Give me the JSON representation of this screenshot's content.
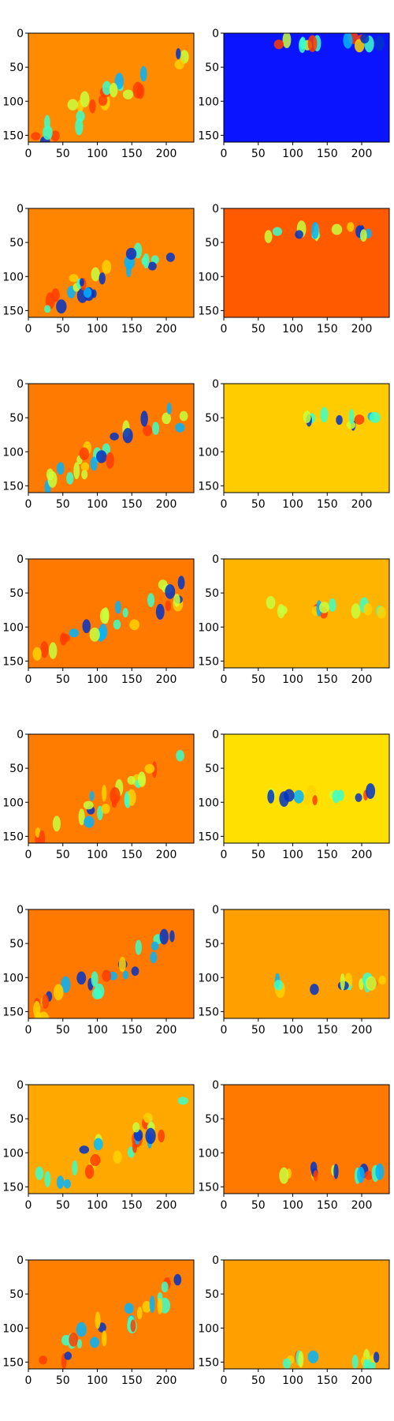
{
  "figure": {
    "rows": 8,
    "cols": 2
  },
  "chart_data": [
    {
      "type": "heatmap",
      "panel": "row1-left",
      "colormap": "jet",
      "base_color": "#ff8c00",
      "xlim": [
        0,
        240
      ],
      "ylim": [
        160,
        0
      ],
      "xticks": [
        0,
        50,
        100,
        150,
        200
      ],
      "yticks": [
        0,
        50,
        100,
        150
      ],
      "xlabel": "",
      "ylabel": "",
      "title": ""
    },
    {
      "type": "heatmap",
      "panel": "row1-right",
      "colormap": "jet",
      "base_color": "#0a14ff",
      "xlim": [
        0,
        240
      ],
      "ylim": [
        160,
        0
      ],
      "xticks": [
        0,
        50,
        100,
        150,
        200
      ],
      "yticks": [
        0,
        50,
        100,
        150
      ],
      "xlabel": "",
      "ylabel": "",
      "title": ""
    },
    {
      "type": "heatmap",
      "panel": "row2-left",
      "colormap": "jet",
      "base_color": "#ff8400",
      "xlim": [
        0,
        240
      ],
      "ylim": [
        160,
        0
      ],
      "xticks": [
        0,
        50,
        100,
        150,
        200
      ],
      "yticks": [
        0,
        50,
        100,
        150
      ],
      "xlabel": "",
      "ylabel": "",
      "title": ""
    },
    {
      "type": "heatmap",
      "panel": "row2-right",
      "colormap": "jet",
      "base_color": "#ff5a00",
      "xlim": [
        0,
        240
      ],
      "ylim": [
        160,
        0
      ],
      "xticks": [
        0,
        50,
        100,
        150,
        200
      ],
      "yticks": [
        0,
        50,
        100,
        150
      ],
      "xlabel": "",
      "ylabel": "",
      "title": ""
    },
    {
      "type": "heatmap",
      "panel": "row3-left",
      "colormap": "jet",
      "base_color": "#ff7a00",
      "xlim": [
        0,
        240
      ],
      "ylim": [
        160,
        0
      ],
      "xticks": [
        0,
        50,
        100,
        150,
        200
      ],
      "yticks": [
        0,
        50,
        100,
        150
      ],
      "xlabel": "",
      "ylabel": "",
      "title": ""
    },
    {
      "type": "heatmap",
      "panel": "row3-right",
      "colormap": "jet",
      "base_color": "#ffcc00",
      "xlim": [
        0,
        240
      ],
      "ylim": [
        160,
        0
      ],
      "xticks": [
        0,
        50,
        100,
        150,
        200
      ],
      "yticks": [
        0,
        50,
        100,
        150
      ],
      "xlabel": "",
      "ylabel": "",
      "title": ""
    },
    {
      "type": "heatmap",
      "panel": "row4-left",
      "colormap": "jet",
      "base_color": "#ff7800",
      "xlim": [
        0,
        240
      ],
      "ylim": [
        160,
        0
      ],
      "xticks": [
        0,
        50,
        100,
        150,
        200
      ],
      "yticks": [
        0,
        50,
        100,
        150
      ],
      "xlabel": "",
      "ylabel": "",
      "title": ""
    },
    {
      "type": "heatmap",
      "panel": "row4-right",
      "colormap": "jet",
      "base_color": "#ffb400",
      "xlim": [
        0,
        240
      ],
      "ylim": [
        160,
        0
      ],
      "xticks": [
        0,
        50,
        100,
        150,
        200
      ],
      "yticks": [
        0,
        50,
        100,
        150
      ],
      "xlabel": "",
      "ylabel": "",
      "title": ""
    },
    {
      "type": "heatmap",
      "panel": "row5-left",
      "colormap": "jet",
      "base_color": "#ff7c00",
      "xlim": [
        0,
        240
      ],
      "ylim": [
        160,
        0
      ],
      "xticks": [
        0,
        50,
        100,
        150,
        200
      ],
      "yticks": [
        0,
        50,
        100,
        150
      ],
      "xlabel": "",
      "ylabel": "",
      "title": ""
    },
    {
      "type": "heatmap",
      "panel": "row5-right",
      "colormap": "jet",
      "base_color": "#ffe000",
      "xlim": [
        0,
        240
      ],
      "ylim": [
        160,
        0
      ],
      "xticks": [
        0,
        50,
        100,
        150,
        200
      ],
      "yticks": [
        0,
        50,
        100,
        150
      ],
      "xlabel": "",
      "ylabel": "",
      "title": ""
    },
    {
      "type": "heatmap",
      "panel": "row6-left",
      "colormap": "jet",
      "base_color": "#ff7800",
      "xlim": [
        0,
        240
      ],
      "ylim": [
        160,
        0
      ],
      "xticks": [
        0,
        50,
        100,
        150,
        200
      ],
      "yticks": [
        0,
        50,
        100,
        150
      ],
      "xlabel": "",
      "ylabel": "",
      "title": ""
    },
    {
      "type": "heatmap",
      "panel": "row6-right",
      "colormap": "jet",
      "base_color": "#ffa000",
      "xlim": [
        0,
        240
      ],
      "ylim": [
        160,
        0
      ],
      "xticks": [
        0,
        50,
        100,
        150,
        200
      ],
      "yticks": [
        0,
        50,
        100,
        150
      ],
      "xlabel": "",
      "ylabel": "",
      "title": ""
    },
    {
      "type": "heatmap",
      "panel": "row7-left",
      "colormap": "jet",
      "base_color": "#ffa800",
      "xlim": [
        0,
        240
      ],
      "ylim": [
        160,
        0
      ],
      "xticks": [
        0,
        50,
        100,
        150,
        200
      ],
      "yticks": [
        0,
        50,
        100,
        150
      ],
      "xlabel": "",
      "ylabel": "",
      "title": ""
    },
    {
      "type": "heatmap",
      "panel": "row7-right",
      "colormap": "jet",
      "base_color": "#ff7800",
      "xlim": [
        0,
        240
      ],
      "ylim": [
        160,
        0
      ],
      "xticks": [
        0,
        50,
        100,
        150,
        200
      ],
      "yticks": [
        0,
        50,
        100,
        150
      ],
      "xlabel": "",
      "ylabel": "",
      "title": ""
    },
    {
      "type": "heatmap",
      "panel": "row8-left",
      "colormap": "jet",
      "base_color": "#ff8000",
      "xlim": [
        0,
        240
      ],
      "ylim": [
        160,
        0
      ],
      "xticks": [
        0,
        50,
        100,
        150,
        200
      ],
      "yticks": [
        0,
        50,
        100,
        150
      ],
      "xlabel": "",
      "ylabel": "",
      "title": ""
    },
    {
      "type": "heatmap",
      "panel": "row8-right",
      "colormap": "jet",
      "base_color": "#ffa000",
      "xlim": [
        0,
        240
      ],
      "ylim": [
        160,
        0
      ],
      "xticks": [
        0,
        50,
        100,
        150,
        200
      ],
      "yticks": [
        0,
        50,
        100,
        150
      ],
      "xlabel": "",
      "ylabel": "",
      "title": ""
    }
  ]
}
